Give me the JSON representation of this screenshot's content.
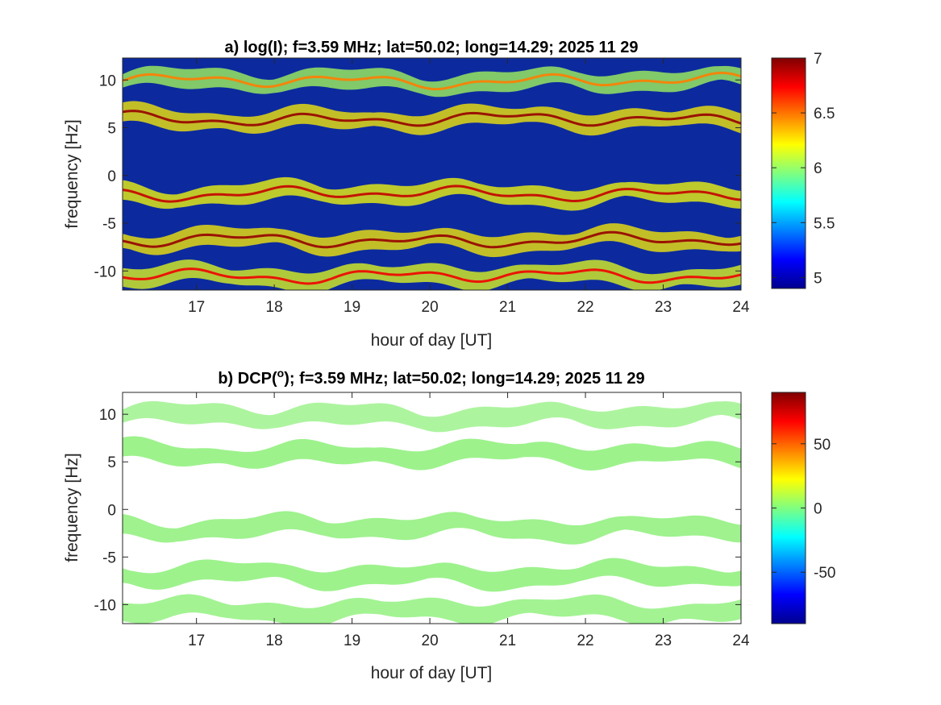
{
  "chart_data": [
    {
      "type": "heatmap",
      "title": "a) log(I); f=3.59 MHz;  lat=50.02; long=14.29; 2025 11 29",
      "xlabel": "hour of day [UT]",
      "ylabel": "frequency [Hz]",
      "xlim": [
        16.05,
        24
      ],
      "ylim": [
        -12,
        12.3
      ],
      "xticks": [
        17,
        18,
        19,
        20,
        21,
        22,
        23,
        24
      ],
      "yticks": [
        10,
        5,
        0,
        -5,
        -10
      ],
      "ytick_labels": [
        "10",
        "5",
        "0",
        "-5",
        "-10"
      ],
      "colorbar": {
        "colormap": "jet",
        "clim": [
          4.9,
          7
        ],
        "ticks": [
          5,
          5.5,
          6,
          6.5,
          7
        ],
        "tick_labels": [
          "5",
          "5.5",
          "6",
          "6.5",
          "7"
        ]
      },
      "background_color": "#0c2a9e",
      "traces": [
        {
          "center_hz": 9.9,
          "intensity": 0.45
        },
        {
          "center_hz": 5.9,
          "intensity": 0.95
        },
        {
          "center_hz": -1.9,
          "intensity": 0.85
        },
        {
          "center_hz": -6.8,
          "intensity": 0.95
        },
        {
          "center_hz": -10.5,
          "intensity": 0.75
        }
      ]
    },
    {
      "type": "heatmap",
      "title_prefix": "b) DCP(",
      "title_sup": "o",
      "title_suffix": "); f=3.59 MHz;  lat=50.02; long=14.29; 2025 11 29",
      "xlabel": "hour of day [UT]",
      "ylabel": "frequency [Hz]",
      "xlim": [
        16.05,
        24
      ],
      "ylim": [
        -12,
        12.3
      ],
      "xticks": [
        17,
        18,
        19,
        20,
        21,
        22,
        23,
        24
      ],
      "yticks": [
        10,
        5,
        0,
        -5,
        -10
      ],
      "ytick_labels": [
        "10",
        "5",
        "0",
        "-5",
        "-10"
      ],
      "colorbar": {
        "colormap": "jet",
        "clim": [
          -90,
          90
        ],
        "ticks": [
          50,
          0,
          -50
        ],
        "tick_labels": [
          "50",
          "0",
          "-50"
        ]
      },
      "background_color": "#ffffff",
      "trace_color": "#8ef07a",
      "traces": [
        {
          "center_hz": 9.8,
          "intensity": 0.5
        },
        {
          "center_hz": 5.8,
          "intensity": 0.9
        },
        {
          "center_hz": -1.9,
          "intensity": 0.85
        },
        {
          "center_hz": -6.9,
          "intensity": 0.9
        },
        {
          "center_hz": -10.6,
          "intensity": 0.75
        }
      ]
    }
  ]
}
